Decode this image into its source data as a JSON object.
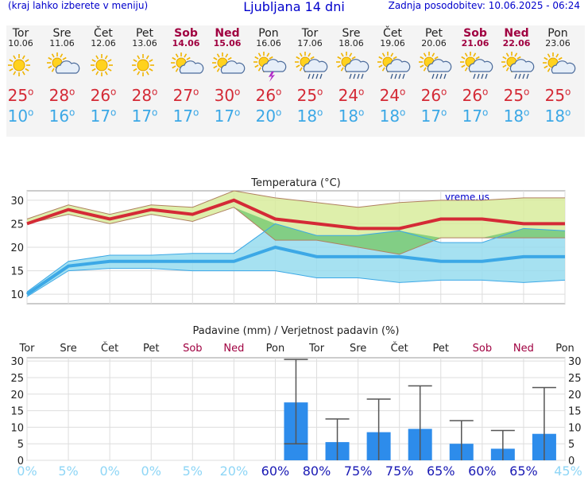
{
  "header": {
    "menu_hint": "(kraj lahko izberete v meniju)",
    "title": "Ljubljana 14 dni",
    "updated": "Zadnja posodobitev: 10.06.2025 - 06:24"
  },
  "days": [
    {
      "name": "Tor",
      "date": "10.06",
      "weekend": false,
      "icon": "sun-icon",
      "tmax": "25",
      "tmin": "10"
    },
    {
      "name": "Sre",
      "date": "11.06",
      "weekend": false,
      "icon": "sun-cloud-icon",
      "tmax": "28",
      "tmin": "16"
    },
    {
      "name": "Čet",
      "date": "12.06",
      "weekend": false,
      "icon": "sun-icon",
      "tmax": "26",
      "tmin": "17"
    },
    {
      "name": "Pet",
      "date": "13.06",
      "weekend": false,
      "icon": "sun-icon",
      "tmax": "28",
      "tmin": "17"
    },
    {
      "name": "Sob",
      "date": "14.06",
      "weekend": true,
      "icon": "sun-cloud-icon",
      "tmax": "27",
      "tmin": "17"
    },
    {
      "name": "Ned",
      "date": "15.06",
      "weekend": true,
      "icon": "sun-cloud-icon",
      "tmax": "30",
      "tmin": "17"
    },
    {
      "name": "Pon",
      "date": "16.06",
      "weekend": false,
      "icon": "storm-icon",
      "tmax": "26",
      "tmin": "20"
    },
    {
      "name": "Tor",
      "date": "17.06",
      "weekend": false,
      "icon": "rain-icon",
      "tmax": "25",
      "tmin": "18"
    },
    {
      "name": "Sre",
      "date": "18.06",
      "weekend": false,
      "icon": "rain-icon",
      "tmax": "24",
      "tmin": "18"
    },
    {
      "name": "Čet",
      "date": "19.06",
      "weekend": false,
      "icon": "rain-icon",
      "tmax": "24",
      "tmin": "18"
    },
    {
      "name": "Pet",
      "date": "20.06",
      "weekend": false,
      "icon": "rain-icon",
      "tmax": "26",
      "tmin": "17"
    },
    {
      "name": "Sob",
      "date": "21.06",
      "weekend": true,
      "icon": "rain-icon",
      "tmax": "26",
      "tmin": "17"
    },
    {
      "name": "Ned",
      "date": "22.06",
      "weekend": true,
      "icon": "rain-icon",
      "tmax": "25",
      "tmin": "18"
    },
    {
      "name": "Pon",
      "date": "23.06",
      "weekend": false,
      "icon": "sun-cloud-icon",
      "tmax": "25",
      "tmin": "18"
    }
  ],
  "colors": {
    "max": "#d42a36",
    "min": "#3ca8e6",
    "max_band": "#d8ec9c",
    "min_band": "#96dcef",
    "overlap": "#7ccb74",
    "bar": "#2d8ceb",
    "weekend": "#a00040",
    "prob_low": "#8fd6f6",
    "prob_high": "#1a1ab4"
  },
  "chart_data": [
    {
      "type": "line",
      "title": "Temperatura (°C)",
      "watermark": "vreme.us",
      "categories": [
        "Tor",
        "Sre",
        "Čet",
        "Pet",
        "Sob",
        "Ned",
        "Pon",
        "Tor",
        "Sre",
        "Čet",
        "Pet",
        "Sob",
        "Ned",
        "Pon"
      ],
      "ylim": [
        8,
        32
      ],
      "yticks": [
        10,
        15,
        20,
        25,
        30
      ],
      "series": [
        {
          "name": "max",
          "values": [
            25,
            28,
            26,
            28,
            27,
            30,
            26,
            25,
            24,
            24,
            26,
            26,
            25,
            25
          ]
        },
        {
          "name": "max_low",
          "values": [
            25,
            27,
            25,
            27,
            25.5,
            28.5,
            21.5,
            21.5,
            20,
            18.5,
            22,
            22,
            22,
            22
          ]
        },
        {
          "name": "max_high",
          "values": [
            26,
            29,
            27,
            29,
            28.5,
            32,
            30.5,
            29.5,
            28.5,
            29.5,
            30,
            30,
            30.5,
            30.5
          ]
        },
        {
          "name": "min",
          "values": [
            10,
            16,
            17,
            17,
            17,
            17,
            20,
            18,
            18,
            18,
            17,
            17,
            18,
            18
          ]
        },
        {
          "name": "min_low",
          "values": [
            9.5,
            15,
            15.5,
            15.5,
            15,
            15,
            15,
            13.5,
            13.5,
            12.5,
            13,
            13,
            12.5,
            13
          ]
        },
        {
          "name": "min_high",
          "values": [
            10.5,
            17,
            18.3,
            18.3,
            18.7,
            18.7,
            25,
            22.5,
            22.5,
            23.5,
            21,
            21,
            24,
            23.5
          ]
        }
      ]
    },
    {
      "type": "bar",
      "title": "Padavine (mm) / Verjetnost padavin (%)",
      "categories": [
        "Tor",
        "Sre",
        "Čet",
        "Pet",
        "Sob",
        "Ned",
        "Pon",
        "Tor",
        "Sre",
        "Čet",
        "Pet",
        "Sob",
        "Ned",
        "Pon"
      ],
      "weekend": [
        false,
        false,
        false,
        false,
        true,
        true,
        false,
        false,
        false,
        false,
        false,
        true,
        true,
        false
      ],
      "ylim": [
        0,
        31
      ],
      "yticks": [
        0,
        5,
        10,
        15,
        20,
        25,
        30
      ],
      "values": [
        0,
        0,
        0,
        0,
        0,
        0,
        17.5,
        5.5,
        8.5,
        9.5,
        5,
        3.5,
        8,
        0
      ],
      "err_low": [
        0,
        0,
        0,
        0,
        0,
        0,
        5,
        0,
        0,
        0,
        0,
        0,
        0,
        0
      ],
      "err_high": [
        0,
        0,
        0,
        0,
        0,
        0,
        30.5,
        12.5,
        18.5,
        22.5,
        12,
        9,
        22,
        0
      ],
      "probability": [
        "0%",
        "5%",
        "0%",
        "0%",
        "5%",
        "20%",
        "60%",
        "80%",
        "75%",
        "75%",
        "65%",
        "60%",
        "65%",
        "45%"
      ]
    }
  ]
}
